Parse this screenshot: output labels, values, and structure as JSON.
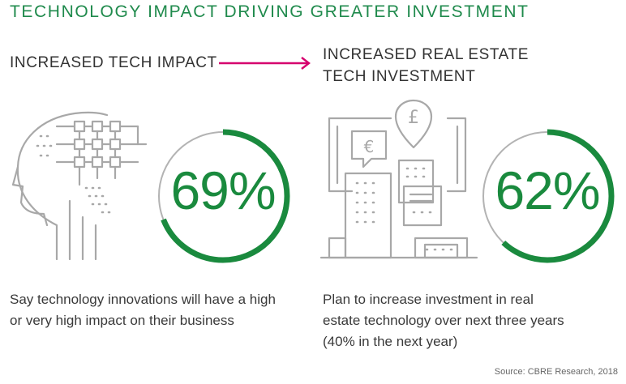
{
  "title": "TECHNOLOGY IMPACT DRIVING GREATER INVESTMENT",
  "left": {
    "heading": "INCREASED TECH IMPACT",
    "percent_label": "69%",
    "percent": 69,
    "description": "Say technology innovations will have a high or very high impact on their business",
    "icon": "head-circuit-icon"
  },
  "right": {
    "heading_line1": "INCREASED REAL ESTATE",
    "heading_line2": "TECH INVESTMENT",
    "percent_label": "62%",
    "percent": 62,
    "description_line1": "Plan to increase investment in real",
    "description_line2": "estate technology over next three years",
    "description_line3": "(40% in the next year)",
    "icon": "real-estate-tech-icon"
  },
  "source": "Source: CBRE Research, 2018",
  "colors": {
    "green": "#1a8a3e",
    "arrow": "#d6006e",
    "icon_gray": "#a8a8a8",
    "ring_gray": "#b3b3b3"
  }
}
